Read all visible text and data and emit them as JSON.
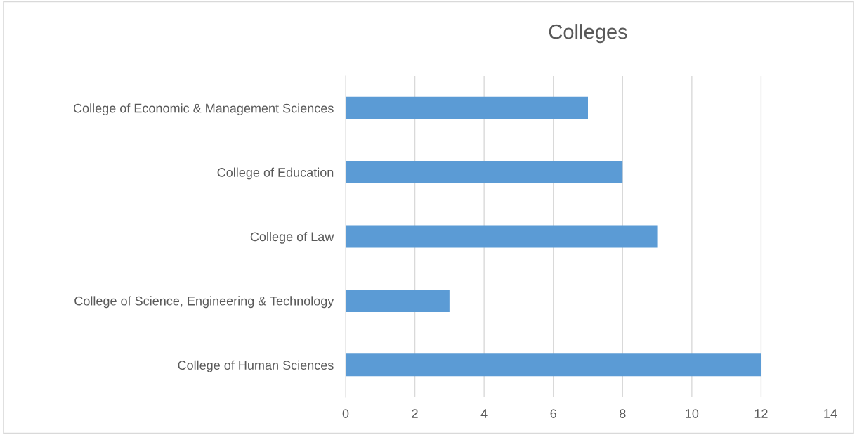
{
  "chart_data": {
    "type": "bar",
    "orientation": "horizontal",
    "title": "Colleges",
    "categories": [
      "College of Economic & Management Sciences",
      "College of Education",
      "College of Law",
      "College of Science, Engineering & Technology",
      "College of Human Sciences"
    ],
    "values": [
      7,
      8,
      9,
      3,
      12
    ],
    "color": "#5b9bd5",
    "xlim": [
      0,
      14
    ],
    "xticks": [
      0,
      2,
      4,
      6,
      8,
      10,
      12,
      14
    ],
    "grid": "x"
  }
}
